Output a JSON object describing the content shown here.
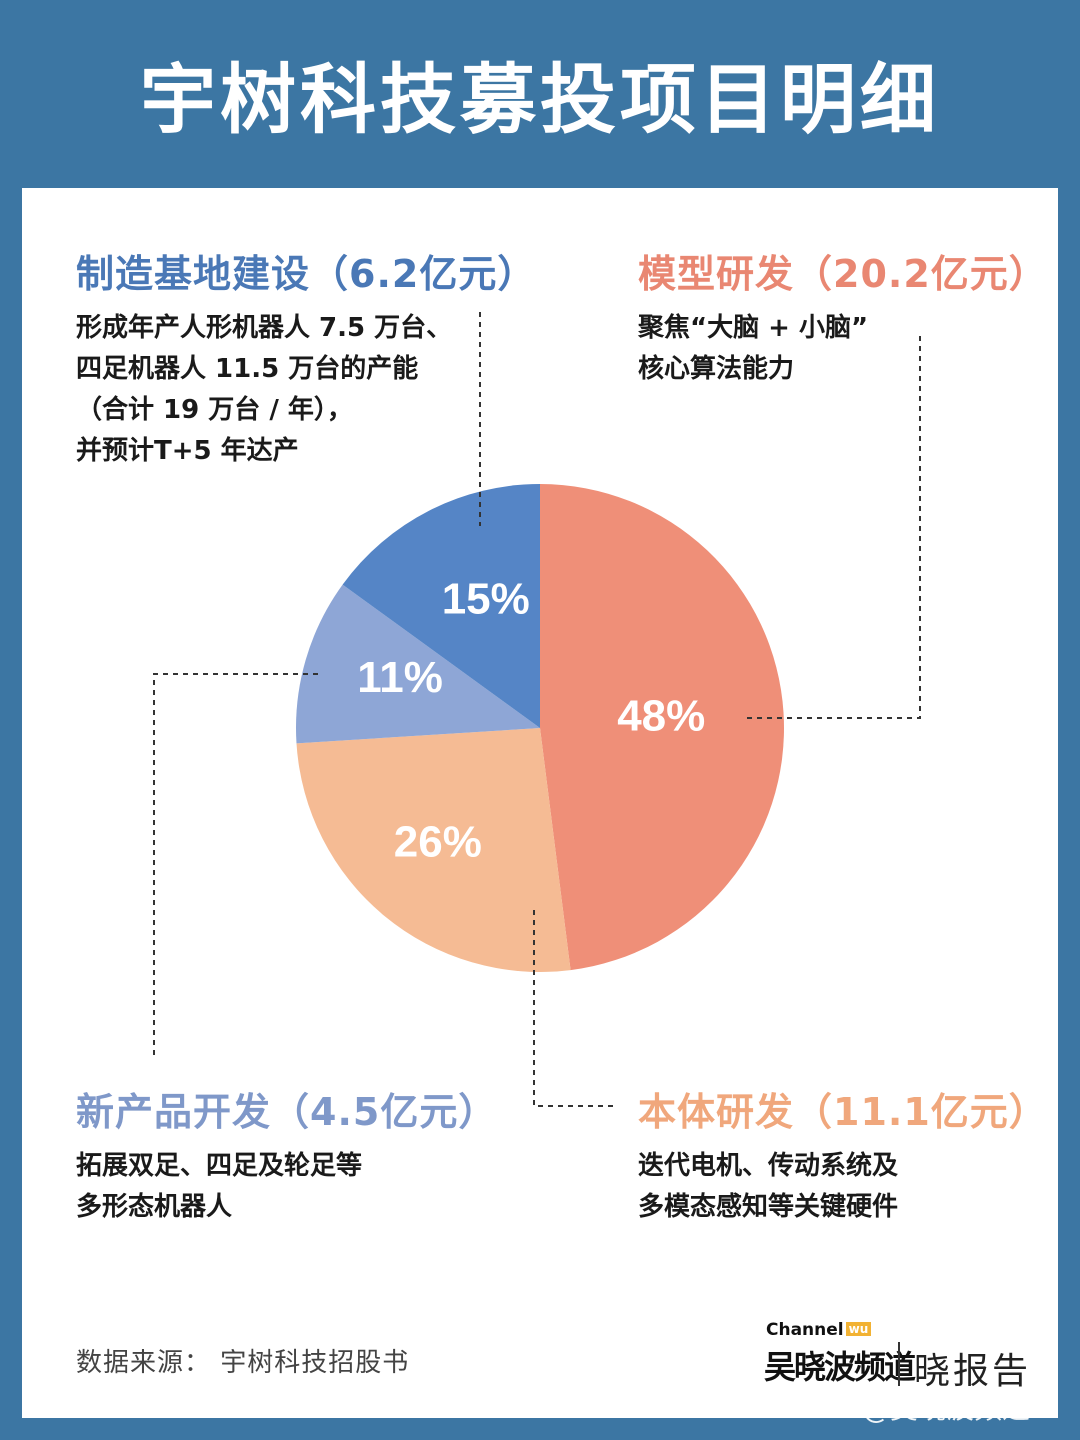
{
  "title": "宇树科技募投项目明细",
  "colors": {
    "background": "#3c76a3",
    "model_rd": "#ef8f78",
    "body_rd": "#f5bb94",
    "new_products": "#8ea6d6",
    "manufacturing": "#5585c6",
    "blue_heading": "#4a78b6",
    "salmon_heading": "#e98772",
    "lightblue_heading": "#7f98c9",
    "peach_heading": "#f0a77c"
  },
  "chart_data": {
    "type": "pie",
    "slices": [
      {
        "label": "模型研发（20.2亿元）",
        "percent_label": "48%",
        "value": 48
      },
      {
        "label": "本体研发（11.1亿元）",
        "percent_label": "26%",
        "value": 26
      },
      {
        "label": "新产品开发（4.5亿元）",
        "percent_label": "11%",
        "value": 11
      },
      {
        "label": "制造基地建设（6.2亿元）",
        "percent_label": "15%",
        "value": 15
      }
    ]
  },
  "blocks": {
    "manufacturing": {
      "heading": "制造基地建设（6.2亿元）",
      "lines": [
        "形成年产人形机器人 7.5 万台、",
        "四足机器人 11.5 万台的产能",
        "（合计 19 万台 / 年），",
        "并预计T+5 年达产"
      ]
    },
    "model": {
      "heading": "模型研发（20.2亿元）",
      "lines": [
        "聚焦“大脑 + 小脑”",
        "核心算法能力"
      ]
    },
    "new_products": {
      "heading": "新产品开发（4.5亿元）",
      "lines": [
        "拓展双足、四足及轮足等",
        "多形态机器人"
      ]
    },
    "body": {
      "heading": "本体研发（11.1亿元）",
      "lines": [
        "迭代电机、传动系统及",
        "多模态感知等关键硬件"
      ]
    }
  },
  "source": "数据来源： 宇树科技招股书",
  "logo": {
    "channel": "Channel",
    "channel_wu": "wu",
    "brand": "吴晓波频道",
    "report": "晓报告"
  },
  "watermark": "@吴晓波频道"
}
